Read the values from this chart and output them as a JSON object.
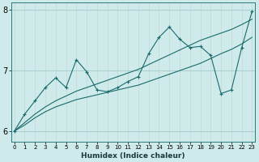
{
  "xlabel": "Humidex (Indice chaleur)",
  "bg_color": "#ceeaea",
  "grid_color": "#a8cece",
  "line_color": "#1a6b6b",
  "x_ticks": [
    0,
    1,
    2,
    3,
    4,
    5,
    6,
    7,
    8,
    9,
    10,
    11,
    12,
    13,
    14,
    15,
    16,
    17,
    18,
    19,
    20,
    21,
    22,
    23
  ],
  "ylim": [
    5.82,
    8.12
  ],
  "xlim": [
    -0.3,
    23.3
  ],
  "yticks": [
    6,
    7,
    8
  ],
  "series1_x": [
    0,
    1,
    2,
    3,
    4,
    5,
    6,
    7,
    8,
    9,
    10,
    11,
    12,
    13,
    14,
    15,
    16,
    17,
    18,
    19,
    20,
    21,
    22,
    23
  ],
  "series1_y": [
    6.0,
    6.28,
    6.5,
    6.72,
    6.88,
    6.72,
    7.18,
    6.98,
    6.68,
    6.65,
    6.72,
    6.82,
    6.9,
    7.28,
    7.55,
    7.72,
    7.52,
    7.38,
    7.4,
    7.25,
    6.62,
    6.68,
    7.38,
    7.98
  ],
  "series2_x": [
    0,
    1,
    2,
    3,
    4,
    5,
    6,
    7,
    8,
    9,
    10,
    11,
    12,
    13,
    14,
    15,
    16,
    17,
    18,
    19,
    20,
    21,
    22,
    23
  ],
  "series2_y": [
    6.0,
    6.14,
    6.28,
    6.4,
    6.5,
    6.58,
    6.66,
    6.72,
    6.78,
    6.84,
    6.9,
    6.96,
    7.02,
    7.1,
    7.18,
    7.26,
    7.34,
    7.42,
    7.5,
    7.56,
    7.62,
    7.68,
    7.76,
    7.85
  ],
  "series3_x": [
    0,
    1,
    2,
    3,
    4,
    5,
    6,
    7,
    8,
    9,
    10,
    11,
    12,
    13,
    14,
    15,
    16,
    17,
    18,
    19,
    20,
    21,
    22,
    23
  ],
  "series3_y": [
    6.0,
    6.1,
    6.22,
    6.32,
    6.4,
    6.46,
    6.52,
    6.56,
    6.6,
    6.64,
    6.68,
    6.72,
    6.76,
    6.82,
    6.88,
    6.94,
    7.0,
    7.06,
    7.12,
    7.2,
    7.28,
    7.35,
    7.44,
    7.55
  ]
}
